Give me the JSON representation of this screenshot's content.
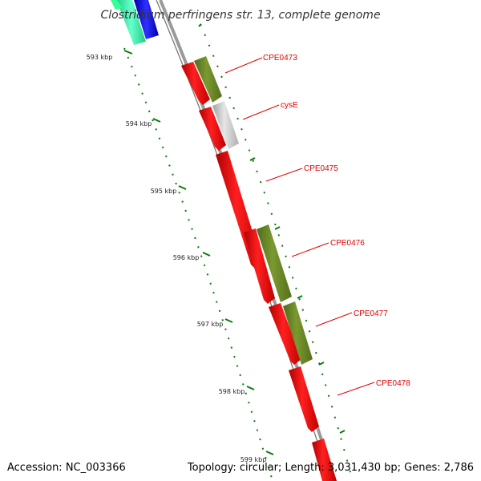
{
  "title": "Clostridium perfringens str. 13, complete genome",
  "footer": {
    "accession": "Accession: NC_003366",
    "summary": "Topology: circular; Length: 3,031,430 bp; Genes: 2,786"
  },
  "scale_ticks": [
    {
      "label": "593 kbp",
      "kbp": 593
    },
    {
      "label": "594 kbp",
      "kbp": 594
    },
    {
      "label": "595 kbp",
      "kbp": 595
    },
    {
      "label": "596 kbp",
      "kbp": 596
    },
    {
      "label": "597 kbp",
      "kbp": 597
    },
    {
      "label": "598 kbp",
      "kbp": 598
    },
    {
      "label": "599 kbp",
      "kbp": 599
    }
  ],
  "gene_labels": [
    "CPE0473",
    "cysE",
    "CPE0475",
    "CPE0476",
    "CPE0477",
    "CPE0478"
  ],
  "colors": {
    "backbone": "#808080",
    "cds": "#ff0000",
    "gene_olive": "#6b8e23",
    "gene_grey": "#c8c8c8",
    "gene_teal": "#33ff99",
    "gene_blue": "#0000ff",
    "tick": "#0a7a0a",
    "label": "#e00000"
  }
}
